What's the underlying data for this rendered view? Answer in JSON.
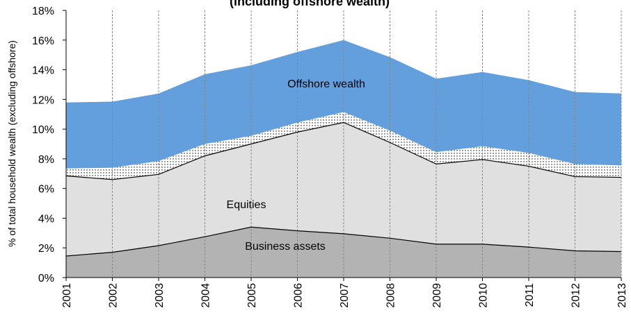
{
  "chart_data": {
    "type": "stacked_area",
    "title": "(including offshore wealth)",
    "y_label": "% of total household wealth (excluding offshore)",
    "categories": [
      "2001",
      "2002",
      "2003",
      "2004",
      "2005",
      "2006",
      "2007",
      "2008",
      "2009",
      "2010",
      "2011",
      "2012",
      "2013"
    ],
    "series": [
      {
        "name": "Business assets",
        "color": "#b3b3b3",
        "values": [
          1.45,
          1.7,
          2.15,
          2.75,
          3.4,
          3.15,
          2.95,
          2.65,
          2.25,
          2.25,
          2.05,
          1.8,
          1.75
        ]
      },
      {
        "name": "Equities",
        "color": "#e0e0e0",
        "values": [
          5.4,
          4.9,
          4.8,
          5.45,
          5.6,
          6.65,
          7.5,
          6.45,
          5.4,
          5.7,
          5.45,
          5.0,
          5.0
        ]
      },
      {
        "color": "dotted",
        "values": [
          0.5,
          0.8,
          0.9,
          0.8,
          0.55,
          0.65,
          0.7,
          0.8,
          0.8,
          0.9,
          0.9,
          0.85,
          0.8
        ]
      },
      {
        "name": "Offshore wealth",
        "color": "#639fdc",
        "values": [
          4.45,
          4.45,
          4.55,
          4.7,
          4.75,
          4.75,
          4.85,
          4.95,
          4.95,
          5.0,
          4.9,
          4.85,
          4.85
        ]
      }
    ],
    "ylim": [
      0,
      18
    ],
    "yticks": [
      {
        "value": 0,
        "label": "0%"
      },
      {
        "value": 2,
        "label": "2%"
      },
      {
        "value": 4,
        "label": "4%"
      },
      {
        "value": 6,
        "label": "6%"
      },
      {
        "value": 8,
        "label": "8%"
      },
      {
        "value": 10,
        "label": "10%"
      },
      {
        "value": 12,
        "label": "12%"
      },
      {
        "value": 14,
        "label": "14%"
      },
      {
        "value": 16,
        "label": "16%"
      },
      {
        "value": 18,
        "label": "18%"
      }
    ],
    "grid": true
  }
}
